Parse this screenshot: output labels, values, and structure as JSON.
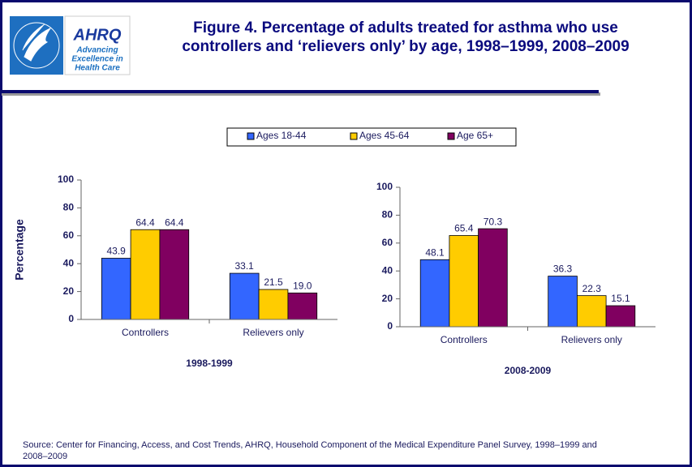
{
  "header": {
    "title": [
      "Figure 4. Percentage of adults treated for asthma  who use",
      "controllers and ‘relievers only’ by age, 1998–1999, 2008–2009"
    ],
    "logo": {
      "name": "AHRQ",
      "tagline": [
        "Advancing",
        "Excellence in",
        "Health Care"
      ]
    }
  },
  "chart_data": [
    {
      "type": "bar",
      "categories": [
        "Controllers",
        "Relievers only"
      ],
      "xlabel": "1998-1999",
      "ylabel": "Percentage",
      "ylim": [
        0,
        100
      ],
      "yticks": [
        0,
        20,
        40,
        60,
        80,
        100
      ],
      "series": [
        {
          "name": "Ages 18-44",
          "color": "#3366ff",
          "values": [
            43.9,
            33.1
          ],
          "value_labels": [
            "43.9",
            "33.1"
          ]
        },
        {
          "name": "Ages 45-64",
          "color": "#ffcc00",
          "values": [
            64.4,
            21.5
          ],
          "value_labels": [
            "64.4",
            "21.5"
          ]
        },
        {
          "name": "Age 65+",
          "color": "#800060",
          "values": [
            64.4,
            19.0
          ],
          "value_labels": [
            "64.4",
            "19.0"
          ]
        }
      ]
    },
    {
      "type": "bar",
      "categories": [
        "Controllers",
        "Relievers only"
      ],
      "xlabel": "2008-2009",
      "ylim": [
        0,
        100
      ],
      "yticks": [
        0,
        20,
        40,
        60,
        80,
        100
      ],
      "series": [
        {
          "name": "Ages 18-44",
          "color": "#3366ff",
          "values": [
            48.1,
            36.3
          ],
          "value_labels": [
            "48.1",
            "36.3"
          ]
        },
        {
          "name": "Ages 45-64",
          "color": "#ffcc00",
          "values": [
            65.4,
            22.3
          ],
          "value_labels": [
            "65.4",
            "22.3"
          ]
        },
        {
          "name": "Age 65+",
          "color": "#800060",
          "values": [
            70.3,
            15.1
          ],
          "value_labels": [
            "70.3",
            "15.1"
          ]
        }
      ]
    }
  ],
  "source": [
    "Source: Center for Financing, Access, and Cost Trends, AHRQ, Household Component of the Medical Expenditure Panel Survey,  1998–1999 and",
    "2008–2009"
  ]
}
